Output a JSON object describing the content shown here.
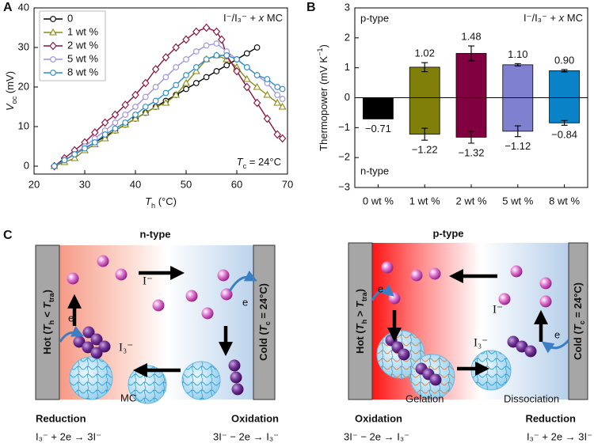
{
  "panel_labels": [
    "A",
    "B",
    "C"
  ],
  "chart_data": [
    {
      "type": "line",
      "annotation": [
        "I⁻/I₃⁻ + ",
        "x",
        " MC"
      ],
      "annotation2": [
        "T",
        "c",
        " = 24°C"
      ],
      "xlabel": [
        "T",
        "h",
        " (°C)"
      ],
      "ylabel": [
        "V",
        "oc",
        " (mV)"
      ],
      "xlim": [
        20,
        70
      ],
      "xticks": [
        20,
        30,
        40,
        50,
        60,
        70
      ],
      "ylim": [
        -2,
        40
      ],
      "yticks": [
        0,
        10,
        20,
        30,
        40
      ],
      "legend": "upper left",
      "series": [
        {
          "name": "0",
          "color": "#000000",
          "marker": "circle",
          "x": [
            24,
            26,
            28,
            30,
            32,
            34,
            36,
            38,
            40,
            42,
            44,
            46,
            48,
            50,
            52,
            54,
            56,
            58,
            60,
            62,
            64
          ],
          "values": [
            0,
            1.5,
            3,
            4.5,
            6,
            7.5,
            9,
            10.5,
            12,
            13.5,
            15,
            16.5,
            18,
            19.5,
            21,
            22.5,
            24,
            25.5,
            27,
            28.5,
            30
          ]
        },
        {
          "name": "1 wt %",
          "color": "#8a8a10",
          "marker": "triangle",
          "x": [
            24,
            26,
            28,
            30,
            32,
            34,
            36,
            38,
            40,
            42,
            44,
            46,
            48,
            50,
            52,
            54,
            56,
            58,
            60,
            62,
            64,
            66,
            68,
            69
          ],
          "values": [
            0,
            1,
            2,
            4,
            5.5,
            7,
            9,
            10.5,
            12,
            13.5,
            15,
            16,
            18,
            21,
            24,
            27,
            28,
            27,
            25,
            22,
            20,
            18,
            16,
            15
          ]
        },
        {
          "name": "2 wt %",
          "color": "#8b1040",
          "marker": "diamond",
          "x": [
            24,
            26,
            28,
            30,
            32,
            34,
            36,
            38,
            40,
            42,
            44,
            46,
            48,
            50,
            52,
            54,
            56,
            57,
            58,
            60,
            62,
            64,
            66,
            68,
            69
          ],
          "values": [
            0,
            2,
            4,
            6,
            8.5,
            11,
            13,
            15.5,
            18,
            21,
            24.5,
            27.5,
            30,
            32,
            34,
            35,
            34,
            32,
            28,
            24,
            20,
            16,
            12,
            8,
            7
          ]
        },
        {
          "name": "5 wt %",
          "color": "#9a90d8",
          "marker": "circle",
          "x": [
            24,
            26,
            28,
            30,
            32,
            34,
            36,
            38,
            40,
            42,
            44,
            46,
            48,
            50,
            52,
            54,
            56,
            58,
            60,
            62,
            64,
            66,
            68,
            69
          ],
          "values": [
            0,
            1.5,
            3,
            5,
            7,
            9,
            11,
            13,
            15,
            17.5,
            20,
            22.5,
            25,
            27,
            29,
            30.5,
            31,
            29,
            27,
            25,
            23,
            21,
            18,
            17
          ]
        },
        {
          "name": "8 wt %",
          "color": "#2a8ac8",
          "marker": "circle",
          "x": [
            24,
            26,
            28,
            30,
            32,
            34,
            36,
            38,
            40,
            42,
            44,
            46,
            48,
            50,
            52,
            54,
            56,
            58,
            60,
            62,
            64,
            66,
            68,
            69
          ],
          "values": [
            0,
            1.5,
            3,
            4.5,
            6,
            8,
            9.5,
            11,
            13,
            15,
            16.5,
            18.5,
            20.5,
            23,
            25,
            27,
            28,
            28,
            27,
            25,
            23,
            22,
            20,
            19.5
          ]
        }
      ]
    },
    {
      "type": "bar",
      "ylabel": [
        "Thermopower (mV K",
        "−1",
        ")"
      ],
      "annotation": [
        "I⁻/I₃⁻ + ",
        "x",
        " MC"
      ],
      "upper_label": "p-type",
      "lower_label": "n-type",
      "categories": [
        "0 wt %",
        "1 wt %",
        "2 wt %",
        "5 wt %",
        "8 wt %"
      ],
      "colors": [
        "#000000",
        "#7f7f0a",
        "#800040",
        "#8080d0",
        "#0a82c8"
      ],
      "ylim": [
        -3,
        3
      ],
      "yticks": [
        {
          "value": -3,
          "label": "−3"
        },
        {
          "value": -2,
          "label": "−2"
        },
        {
          "value": -1,
          "label": "−1"
        },
        0,
        1,
        2,
        3
      ],
      "series": [
        {
          "values": [
            null,
            1.02,
            1.48,
            1.1,
            0.9
          ],
          "value_labels": [
            null,
            "1.02",
            "1.48",
            "1.10",
            "0.90"
          ],
          "errors": [
            null,
            0.15,
            0.25,
            0.04,
            0.04
          ]
        },
        {
          "values": [
            -0.71,
            -1.22,
            -1.32,
            -1.12,
            -0.84
          ],
          "value_labels": [
            "−0.71",
            "−1.22",
            "−1.32",
            "−1.12",
            "−0.84"
          ],
          "errors": [
            null,
            0.2,
            0.2,
            0.18,
            0.08
          ]
        }
      ]
    }
  ],
  "diagram": {
    "left": {
      "title": "n-type",
      "hot": [
        "Hot (",
        "T",
        "h",
        " < ",
        "T",
        "tra",
        ")"
      ],
      "cold": [
        "Cold (",
        "T",
        "c",
        " = 24°C)"
      ],
      "ion": "I⁻",
      "triiodide": "I₃⁻",
      "electron": "e",
      "mc": "MC",
      "left_process": "Reduction",
      "left_equation": "I₃⁻ + 2e → 3I⁻",
      "right_process": "Oxidation",
      "right_equation": "3I⁻ − 2e → I₃⁻"
    },
    "right": {
      "title": "p-type",
      "hot": [
        "Hot (",
        "T",
        "h",
        " > ",
        "T",
        "tra",
        ")"
      ],
      "cold": [
        "Cold (",
        "T",
        "c",
        " = 24°C)"
      ],
      "ion": "I⁻",
      "triiodide": "I₃⁻",
      "electron": "e",
      "gelation": "Gelation",
      "dissociation": "Dissociation",
      "left_process": "Oxidation",
      "left_equation": "3I⁻ − 2e → I₃⁻",
      "right_process": "Reduction",
      "right_equation": "I₃⁻ + 2e → 3I⁻"
    }
  }
}
